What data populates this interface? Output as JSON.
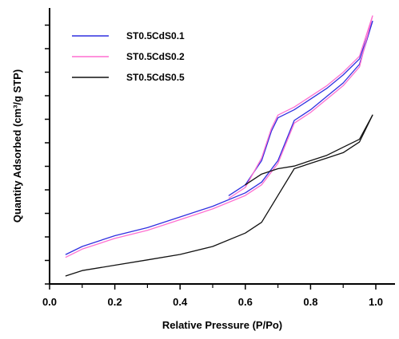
{
  "chart_data": {
    "type": "line",
    "title": "",
    "xlabel": "Relative Pressure (P/Po)",
    "ylabel": "Quantity Adsorbed (cm³/g STP)",
    "xlim": [
      0.0,
      1.0
    ],
    "ylim": [
      0,
      1
    ],
    "xticks": [
      "0.0",
      "0.2",
      "0.4",
      "0.6",
      "0.8",
      "1.0"
    ],
    "grid": false,
    "legend_position": "top-left",
    "series": [
      {
        "name": "ST0.5CdS0.1",
        "color": "#2f2fe0",
        "adsorption": {
          "x": [
            0.05,
            0.1,
            0.2,
            0.3,
            0.4,
            0.5,
            0.6,
            0.65,
            0.7,
            0.75,
            0.8,
            0.85,
            0.9,
            0.95,
            0.99
          ],
          "y": [
            0.11,
            0.14,
            0.18,
            0.21,
            0.25,
            0.29,
            0.34,
            0.38,
            0.46,
            0.61,
            0.65,
            0.7,
            0.75,
            0.82,
            0.98
          ]
        },
        "desorption": {
          "x": [
            0.99,
            0.95,
            0.9,
            0.85,
            0.8,
            0.75,
            0.7,
            0.68,
            0.65,
            0.6,
            0.55
          ],
          "y": [
            0.98,
            0.84,
            0.78,
            0.73,
            0.69,
            0.65,
            0.62,
            0.57,
            0.46,
            0.37,
            0.33
          ]
        }
      },
      {
        "name": "ST0.5CdS0.2",
        "color": "#ff6fd0",
        "adsorption": {
          "x": [
            0.05,
            0.1,
            0.2,
            0.3,
            0.4,
            0.5,
            0.6,
            0.65,
            0.7,
            0.75,
            0.8,
            0.85,
            0.9,
            0.95,
            0.99
          ],
          "y": [
            0.1,
            0.13,
            0.17,
            0.2,
            0.24,
            0.28,
            0.33,
            0.37,
            0.45,
            0.6,
            0.64,
            0.69,
            0.74,
            0.81,
            1.0
          ]
        },
        "desorption": {
          "x": [
            0.99,
            0.95,
            0.9,
            0.85,
            0.8,
            0.75,
            0.7,
            0.68,
            0.65,
            0.6,
            0.55
          ],
          "y": [
            1.0,
            0.85,
            0.79,
            0.74,
            0.7,
            0.66,
            0.63,
            0.58,
            0.47,
            0.36,
            0.32
          ]
        }
      },
      {
        "name": "ST0.5CdS0.5",
        "color": "#111111",
        "adsorption": {
          "x": [
            0.05,
            0.1,
            0.2,
            0.3,
            0.4,
            0.5,
            0.6,
            0.65,
            0.7,
            0.75,
            0.8,
            0.85,
            0.9,
            0.95,
            0.99
          ],
          "y": [
            0.03,
            0.05,
            0.07,
            0.09,
            0.11,
            0.14,
            0.19,
            0.23,
            0.33,
            0.43,
            0.45,
            0.47,
            0.49,
            0.53,
            0.63
          ]
        },
        "desorption": {
          "x": [
            0.99,
            0.95,
            0.9,
            0.85,
            0.8,
            0.75,
            0.7,
            0.65,
            0.6
          ],
          "y": [
            0.63,
            0.54,
            0.51,
            0.48,
            0.46,
            0.44,
            0.43,
            0.41,
            0.37
          ]
        }
      }
    ]
  }
}
